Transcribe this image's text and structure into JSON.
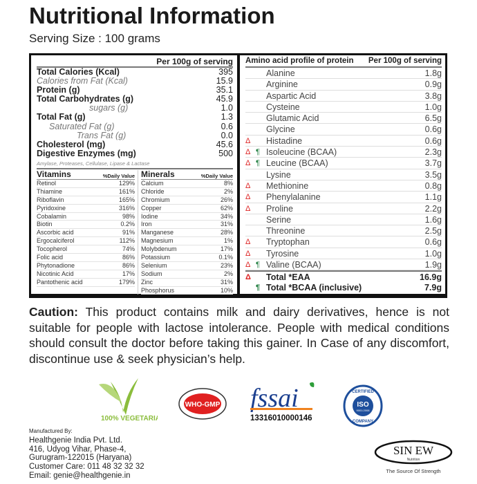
{
  "title": "Nutritional Information",
  "serving": "Serving Size : 100 grams",
  "nutrition": {
    "header": "Per 100g of serving",
    "rows": [
      {
        "name": "Total Calories (Kcal)",
        "value": "395",
        "style": "b"
      },
      {
        "name": "Calories from Fat (Kcal)",
        "value": "15.9",
        "style": "i"
      },
      {
        "name": "Protein (g)",
        "value": "35.1",
        "style": "b"
      },
      {
        "name": "Total Carbohydrates (g)",
        "value": "45.9",
        "style": "b"
      },
      {
        "name": "sugars (g)",
        "value": "1.0",
        "style": "i i1"
      },
      {
        "name": "Total Fat (g)",
        "value": "1.3",
        "style": "b"
      },
      {
        "name": "Saturated Fat (g)",
        "value": "0.6",
        "style": "i i2"
      },
      {
        "name": "Trans Fat (g)",
        "value": "0.0",
        "style": "i i3"
      },
      {
        "name": "Cholesterol (mg)",
        "value": "45.6",
        "style": "b"
      },
      {
        "name": "Digestive Enzymes (mg)",
        "value": "500",
        "style": "b"
      }
    ],
    "enzymes_note": "Amylase, Proteases, Cellulase, Lipase & Lactase"
  },
  "vitamins": {
    "header": "Vitamins",
    "dv_header": "%Daily Value",
    "rows": [
      [
        "Retinol",
        "129%"
      ],
      [
        "Thiamine",
        "161%"
      ],
      [
        "Riboflavin",
        "165%"
      ],
      [
        "Pyridoxine",
        "316%"
      ],
      [
        "Cobalamin",
        "98%"
      ],
      [
        "Biotin",
        "0.2%"
      ],
      [
        "Ascorbic acid",
        "91%"
      ],
      [
        "Ergocalciferol",
        "112%"
      ],
      [
        "Tocopherol",
        "74%"
      ],
      [
        "Folic acid",
        "86%"
      ],
      [
        "Phytonadione",
        "86%"
      ],
      [
        "Nicotinic Acid",
        "17%"
      ],
      [
        "Pantothenic acid",
        "179%"
      ]
    ]
  },
  "minerals": {
    "header": "Minerals",
    "dv_header": "%Daily Value",
    "rows": [
      [
        "Calcium",
        "8%"
      ],
      [
        "Chloride",
        "2%"
      ],
      [
        "Chromium",
        "26%"
      ],
      [
        "Copper",
        "62%"
      ],
      [
        "Iodine",
        "34%"
      ],
      [
        "Iron",
        "31%"
      ],
      [
        "Manganese",
        "28%"
      ],
      [
        "Magnesium",
        "1%"
      ],
      [
        "Molybdenum",
        "17%"
      ],
      [
        "Potassium",
        "0.1%"
      ],
      [
        "Selenium",
        "23%"
      ],
      [
        "Sodium",
        "2%"
      ],
      [
        "Zinc",
        "31%"
      ],
      [
        "Phosphorus",
        "10%"
      ]
    ]
  },
  "amino": {
    "header": "Amino acid profile of protein",
    "value_header": "Per 100g of serving",
    "eaa_mark": "Δ",
    "bcaa_mark": "¶",
    "rows": [
      {
        "name": "Alanine",
        "value": "1.8g",
        "eaa": false,
        "bcaa": false
      },
      {
        "name": "Arginine",
        "value": "0.9g",
        "eaa": false,
        "bcaa": false
      },
      {
        "name": "Aspartic Acid",
        "value": "3.8g",
        "eaa": false,
        "bcaa": false
      },
      {
        "name": "Cysteine",
        "value": "1.0g",
        "eaa": false,
        "bcaa": false
      },
      {
        "name": "Glutamic Acid",
        "value": "6.5g",
        "eaa": false,
        "bcaa": false
      },
      {
        "name": "Glycine",
        "value": "0.6g",
        "eaa": false,
        "bcaa": false
      },
      {
        "name": "Histadine",
        "value": "0.6g",
        "eaa": true,
        "bcaa": false
      },
      {
        "name": "Isoleucine (BCAA)",
        "value": "2.3g",
        "eaa": true,
        "bcaa": true
      },
      {
        "name": "Leucine (BCAA)",
        "value": "3.7g",
        "eaa": true,
        "bcaa": true
      },
      {
        "name": "Lysine",
        "value": "3.5g",
        "eaa": false,
        "bcaa": false
      },
      {
        "name": "Methionine",
        "value": "0.8g",
        "eaa": true,
        "bcaa": false
      },
      {
        "name": "Phenylalanine",
        "value": "1.1g",
        "eaa": true,
        "bcaa": false
      },
      {
        "name": "Proline",
        "value": "2.2g",
        "eaa": true,
        "bcaa": false
      },
      {
        "name": "Serine",
        "value": "1.6g",
        "eaa": false,
        "bcaa": false
      },
      {
        "name": "Threonine",
        "value": "2.5g",
        "eaa": false,
        "bcaa": false
      },
      {
        "name": "Tryptophan",
        "value": "0.6g",
        "eaa": true,
        "bcaa": false
      },
      {
        "name": "Tyrosine",
        "value": "1.0g",
        "eaa": true,
        "bcaa": false
      },
      {
        "name": "Valine (BCAA)",
        "value": "1.9g",
        "eaa": true,
        "bcaa": true
      }
    ],
    "totals": [
      {
        "name": "Total *EAA",
        "value": "16.9g",
        "eaa": true,
        "bcaa": false
      },
      {
        "name": "Total *BCAA (inclusive)",
        "value": "7.9g",
        "eaa": false,
        "bcaa": true
      }
    ]
  },
  "caution": {
    "label": "Caution:",
    "text": " This product contains milk and dairy derivatives, hence is not suitable for people with lactose intolerance. People with medical conditions should consult the doctor before taking this gainer. In Case of any discomfort, discontinue use & seek physician’s help."
  },
  "logos": {
    "vegetarian": "100% VEGETARIAN",
    "who_gmp": "WHO-GMP",
    "fssai": "fssai",
    "fssai_license": "13316010000146",
    "iso": "ISO",
    "iso_top": "CERTIFIED",
    "iso_bottom": "COMPANY",
    "iso_number": "9001:2008",
    "brand": "SIN EW",
    "brand_sub": "Nutrition",
    "brand_tagline": "The Source Of Strength",
    "colors": {
      "veg_green": "#8bbd3c",
      "who_red": "#e02020",
      "fssai_blue": "#1b3f8f",
      "fssai_orange": "#f0821e",
      "iso_blue": "#1e4f9c"
    }
  },
  "manufacturer": {
    "label": "Manufactured By:",
    "lines": [
      "Healthgenie India Pvt. Ltd.",
      "416, Udyog Vihar, Phase-4,",
      "Gurugram-122015 (Haryana)",
      "Customer Care: 011 48 32 32 32",
      "Email: genie@healthgenie.in"
    ]
  }
}
